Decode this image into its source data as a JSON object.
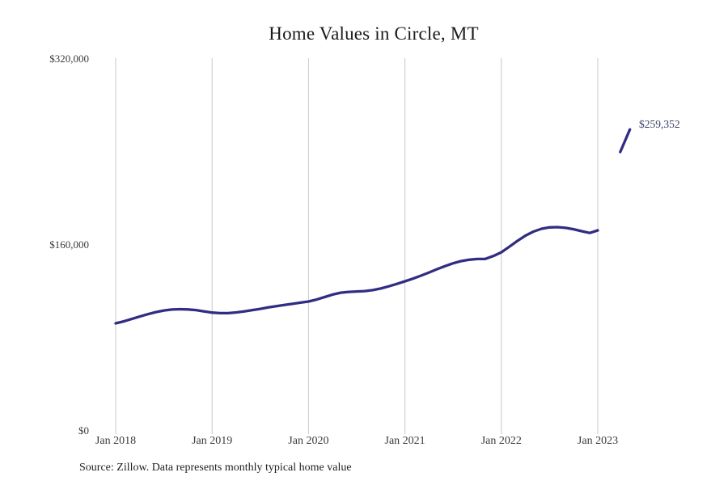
{
  "title": "Home Values in Circle, MT",
  "source_note": "Source: Zillow. Data represents monthly typical home value",
  "annotation_label": "$259,352",
  "colors": {
    "line": "#322d82",
    "grid": "#c8c8c8",
    "annotation_text": "#3b4268",
    "axis_text": "#3a3a3a",
    "title_text": "#1a1a1a",
    "background": "#ffffff"
  },
  "y_axis": {
    "ticks": [
      {
        "label": "$0",
        "value": 0
      },
      {
        "label": "$160,000",
        "value": 160000
      },
      {
        "label": "$320,000",
        "value": 320000
      }
    ]
  },
  "x_axis": {
    "ticks": [
      {
        "label": "Jan 2018",
        "month_index": 0
      },
      {
        "label": "Jan 2019",
        "month_index": 12
      },
      {
        "label": "Jan 2020",
        "month_index": 24
      },
      {
        "label": "Jan 2021",
        "month_index": 36
      },
      {
        "label": "Jan 2022",
        "month_index": 48
      },
      {
        "label": "Jan 2023",
        "month_index": 60
      }
    ]
  },
  "chart_data": {
    "type": "line",
    "title": "Home Values in Circle, MT",
    "xlabel": "",
    "ylabel": "",
    "unit": "USD",
    "ylim": [
      0,
      320000
    ],
    "grid": "vertical-only",
    "legend": "none",
    "series_name": "Monthly typical home value",
    "months": [
      "2018-01",
      "2018-02",
      "2018-03",
      "2018-04",
      "2018-05",
      "2018-06",
      "2018-07",
      "2018-08",
      "2018-09",
      "2018-10",
      "2018-11",
      "2018-12",
      "2019-01",
      "2019-02",
      "2019-03",
      "2019-04",
      "2019-05",
      "2019-06",
      "2019-07",
      "2019-08",
      "2019-09",
      "2019-10",
      "2019-11",
      "2019-12",
      "2020-01",
      "2020-02",
      "2020-03",
      "2020-04",
      "2020-05",
      "2020-06",
      "2020-07",
      "2020-08",
      "2020-09",
      "2020-10",
      "2020-11",
      "2020-12",
      "2021-01",
      "2021-02",
      "2021-03",
      "2021-04",
      "2021-05",
      "2021-06",
      "2021-07",
      "2021-08",
      "2021-09",
      "2021-10",
      "2021-11",
      "2021-12",
      "2022-01",
      "2022-02",
      "2022-03",
      "2022-04",
      "2022-05",
      "2022-06",
      "2022-07",
      "2022-08",
      "2022-09",
      "2022-10",
      "2022-11",
      "2022-12",
      "2023-01"
    ],
    "values": [
      92500,
      94200,
      96300,
      98400,
      100400,
      102200,
      103600,
      104400,
      104700,
      104500,
      103900,
      102800,
      101800,
      101300,
      101300,
      101900,
      102800,
      103900,
      105000,
      106200,
      107300,
      108300,
      109300,
      110300,
      111300,
      113000,
      115100,
      117300,
      118900,
      119600,
      119900,
      120300,
      121100,
      122500,
      124400,
      126500,
      128700,
      131000,
      133600,
      136300,
      139100,
      141800,
      144200,
      146100,
      147300,
      147900,
      148000,
      150500,
      153700,
      158500,
      163500,
      168000,
      171500,
      173900,
      175100,
      175300,
      174700,
      173500,
      171800,
      170300,
      172500
    ],
    "final_segment": {
      "months": [
        "2023-03",
        "2023-04"
      ],
      "month_indices": [
        62.8,
        64
      ],
      "values": [
        240000,
        259352
      ]
    },
    "latest_value_label": "$259,352"
  }
}
